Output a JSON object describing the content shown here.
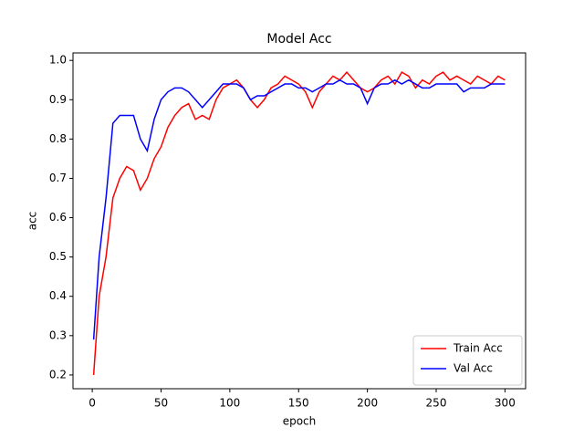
{
  "chart_data": {
    "type": "line",
    "title": "Model Acc",
    "xlabel": "epoch",
    "ylabel": "acc",
    "x": [
      1,
      5,
      10,
      15,
      20,
      25,
      30,
      35,
      40,
      45,
      50,
      55,
      60,
      65,
      70,
      75,
      80,
      85,
      90,
      95,
      100,
      105,
      110,
      115,
      120,
      125,
      130,
      135,
      140,
      145,
      150,
      155,
      160,
      165,
      170,
      175,
      180,
      185,
      190,
      195,
      200,
      205,
      210,
      215,
      220,
      225,
      230,
      235,
      240,
      245,
      250,
      255,
      260,
      265,
      270,
      275,
      280,
      285,
      290,
      295,
      300
    ],
    "series": [
      {
        "name": "Train Acc",
        "color": "#ff0000",
        "values": [
          0.2,
          0.4,
          0.5,
          0.65,
          0.7,
          0.73,
          0.72,
          0.67,
          0.7,
          0.75,
          0.78,
          0.83,
          0.86,
          0.88,
          0.89,
          0.85,
          0.86,
          0.85,
          0.9,
          0.93,
          0.94,
          0.95,
          0.93,
          0.9,
          0.88,
          0.9,
          0.93,
          0.94,
          0.96,
          0.95,
          0.94,
          0.92,
          0.88,
          0.92,
          0.94,
          0.96,
          0.95,
          0.97,
          0.95,
          0.93,
          0.92,
          0.93,
          0.95,
          0.96,
          0.94,
          0.97,
          0.96,
          0.93,
          0.95,
          0.94,
          0.96,
          0.97,
          0.95,
          0.96,
          0.95,
          0.94,
          0.96,
          0.95,
          0.94,
          0.96,
          0.95
        ]
      },
      {
        "name": "Val Acc",
        "color": "#0000ff",
        "values": [
          0.29,
          0.5,
          0.65,
          0.84,
          0.86,
          0.86,
          0.86,
          0.8,
          0.77,
          0.85,
          0.9,
          0.92,
          0.93,
          0.93,
          0.92,
          0.9,
          0.88,
          0.9,
          0.92,
          0.94,
          0.94,
          0.94,
          0.93,
          0.9,
          0.91,
          0.91,
          0.92,
          0.93,
          0.94,
          0.94,
          0.93,
          0.93,
          0.92,
          0.93,
          0.94,
          0.94,
          0.95,
          0.94,
          0.94,
          0.93,
          0.89,
          0.93,
          0.94,
          0.94,
          0.95,
          0.94,
          0.95,
          0.94,
          0.93,
          0.93,
          0.94,
          0.94,
          0.94,
          0.94,
          0.92,
          0.93,
          0.93,
          0.93,
          0.94,
          0.94,
          0.94
        ]
      }
    ],
    "xlim": [
      -14,
      315
    ],
    "xticks": [
      0,
      50,
      100,
      150,
      200,
      250,
      300
    ],
    "ylim": [
      0.165,
      1.019
    ],
    "yticks": [
      0.2,
      0.3,
      0.4,
      0.5,
      0.6,
      0.7,
      0.8,
      0.9,
      {
        "value": 1,
        "label": "1.0"
      }
    ],
    "grid": false,
    "legend": "lower right"
  }
}
